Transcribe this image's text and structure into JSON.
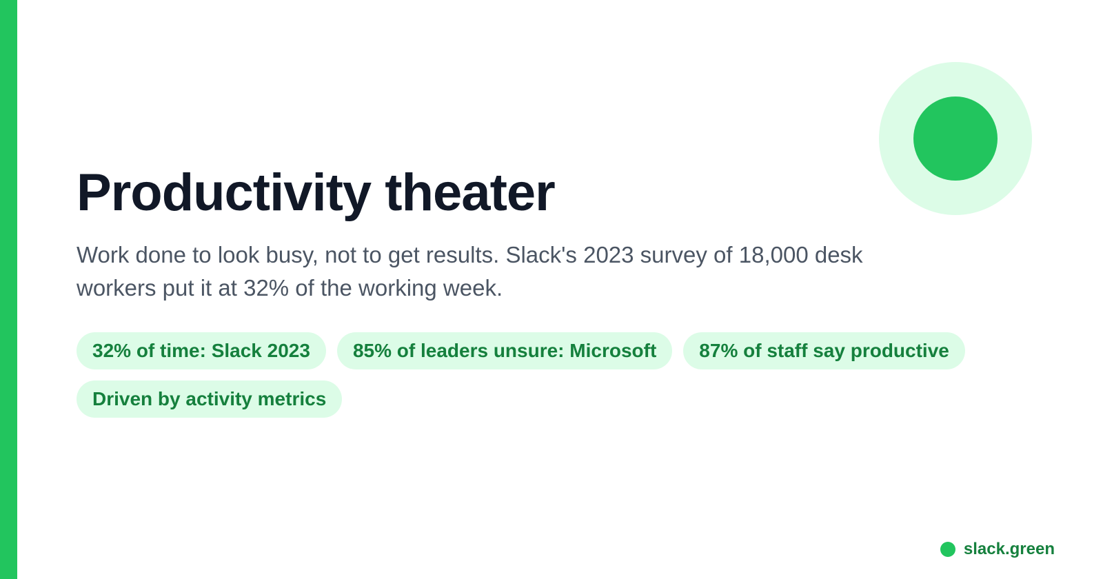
{
  "colors": {
    "accent": "#22c55e",
    "accent_light": "#dcfce7",
    "tag_text": "#15803d",
    "title": "#111827",
    "subtitle": "#4b5563"
  },
  "decoration": {
    "icon": "target-circle-icon"
  },
  "card": {
    "title": "Productivity theater",
    "subtitle": "Work done to look busy, not to get results. Slack's 2023 survey of 18,000 desk workers put it at 32% of the working week."
  },
  "tags": [
    "32% of time: Slack 2023",
    "85% of leaders unsure: Microsoft",
    "87% of staff say productive",
    "Driven by activity metrics"
  ],
  "brand": {
    "icon": "dot-icon",
    "label": "slack.green"
  }
}
